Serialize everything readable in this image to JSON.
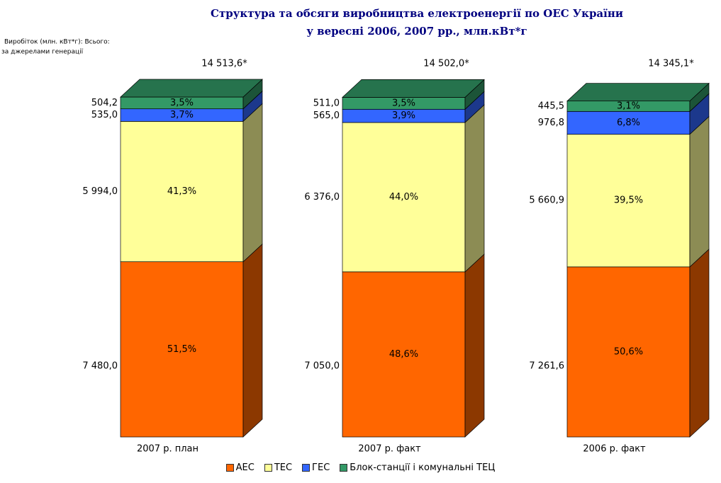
{
  "chart_data": {
    "type": "stacked-bar-3d",
    "title": [
      "Структура та обсяги виробництва електроенергії по ОЕС України",
      "у вересні 2006, 2007 рр., млн.кВт*г"
    ],
    "note": [
      "Виробіток (млн. кВт*г): Всього:",
      "за джерелами генерації"
    ],
    "categories": [
      "2007 р. план",
      "2007 р. факт",
      "2006 р. факт"
    ],
    "totals": {
      "values": [
        14513.6,
        14502.0,
        14345.1
      ],
      "value_labels": [
        "14 513,6*",
        "14 502,0*",
        "14 345,1*"
      ]
    },
    "series": [
      {
        "name": "АЕС",
        "color": "#ff6600",
        "values": [
          7480.0,
          7050.0,
          7261.6
        ],
        "value_labels": [
          "7 480,0",
          "7 050,0",
          "7 261,6"
        ],
        "shares": [
          51.5,
          48.6,
          50.6
        ],
        "share_labels": [
          "51,5%",
          "48,6%",
          "50,6%"
        ]
      },
      {
        "name": "ТЕС",
        "color": "#ffff99",
        "values": [
          5994.0,
          6376.0,
          5660.9
        ],
        "value_labels": [
          "5 994,0",
          "6 376,0",
          "5 660,9"
        ],
        "shares": [
          41.3,
          44.0,
          39.5
        ],
        "share_labels": [
          "41,3%",
          "44,0%",
          "39,5%"
        ]
      },
      {
        "name": "ГЕС",
        "color": "#3366ff",
        "values": [
          535.0,
          565.0,
          976.8
        ],
        "value_labels": [
          "535,0",
          "565,0",
          "976,8"
        ],
        "shares": [
          3.7,
          3.9,
          6.8
        ],
        "share_labels": [
          "3,7%",
          "3,9%",
          "6,8%"
        ]
      },
      {
        "name": "Блок-станції і комунальні ТЕЦ",
        "color": "#339966",
        "values": [
          504.2,
          511.0,
          445.5
        ],
        "value_labels": [
          "504,2",
          "511,0",
          "445,5"
        ],
        "shares": [
          3.5,
          3.5,
          3.1
        ],
        "share_labels": [
          "3,5%",
          "3,5%",
          "3,1%"
        ]
      }
    ]
  }
}
